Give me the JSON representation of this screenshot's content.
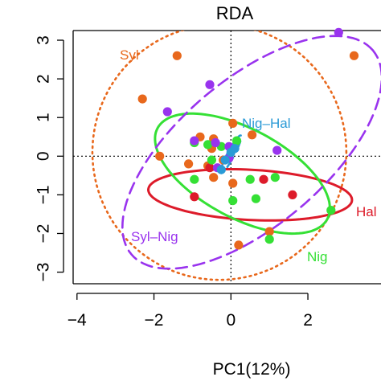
{
  "chart_data": {
    "type": "scatter",
    "title": "RDA",
    "xlabel": "PC1(12%)",
    "ylabel": "",
    "xlim": [
      -4.1,
      3.9
    ],
    "ylim": [
      -3.3,
      3.25
    ],
    "x_ticks": [
      "−4",
      "−2",
      "0",
      "2"
    ],
    "x_tick_values": [
      -4,
      -2,
      0,
      2
    ],
    "y_ticks": [
      "−3",
      "−2",
      "−1",
      "0",
      "1",
      "2",
      "3"
    ],
    "y_tick_values": [
      -3,
      -2,
      -1,
      0,
      1,
      2,
      3
    ],
    "reference_lines": {
      "x": 0,
      "y": 0,
      "style": "dotted"
    },
    "groups": [
      {
        "label": "Syl",
        "color": "#e8681c",
        "ellipse": {
          "center": [
            -0.3,
            0.1
          ],
          "half_width": 3.3,
          "half_height": 3.3,
          "angle_deg": 0,
          "style": "dotted"
        },
        "points": [
          [
            -1.4,
            2.6
          ],
          [
            -2.3,
            1.48
          ],
          [
            -1.85,
            0.0
          ],
          [
            -1.1,
            -0.2
          ],
          [
            -0.8,
            0.5
          ],
          [
            -0.45,
            0.45
          ],
          [
            -0.5,
            0.2
          ],
          [
            -0.6,
            -0.25
          ],
          [
            -0.45,
            -0.55
          ],
          [
            -0.2,
            -0.1
          ],
          [
            0.05,
            -0.7
          ],
          [
            0.05,
            0.85
          ],
          [
            0.55,
            0.55
          ],
          [
            0.2,
            -2.3
          ],
          [
            1.0,
            -1.95
          ],
          [
            3.2,
            2.6
          ]
        ]
      },
      {
        "label": "Hal",
        "color": "#dd1b2a",
        "ellipse": {
          "center": [
            0.5,
            -1.0
          ],
          "half_width": 2.65,
          "half_height": 0.65,
          "angle_deg": -3,
          "style": "solid"
        },
        "points": [
          [
            -0.95,
            -1.05
          ],
          [
            -0.55,
            -0.3
          ],
          [
            0.85,
            -0.6
          ],
          [
            1.6,
            -1.0
          ]
        ]
      },
      {
        "label": "Nig",
        "color": "#35e035",
        "ellipse": {
          "center": [
            0.3,
            -0.45
          ],
          "half_width": 2.5,
          "half_height": 1.15,
          "angle_deg": -28,
          "style": "solid"
        },
        "points": [
          [
            -0.95,
            0.35
          ],
          [
            -0.6,
            0.3
          ],
          [
            -0.25,
            0.25
          ],
          [
            0.15,
            0.4
          ],
          [
            -0.5,
            -0.1
          ],
          [
            0.5,
            -0.6
          ],
          [
            1.15,
            -0.55
          ],
          [
            0.65,
            -1.1
          ],
          [
            0.05,
            -1.15
          ],
          [
            -0.95,
            -0.6
          ],
          [
            2.6,
            -1.4
          ],
          [
            1.0,
            -2.15
          ]
        ]
      },
      {
        "label": "Syl–Nig",
        "color": "#9933ee",
        "ellipse": {
          "center": [
            0.55,
            0.1
          ],
          "half_width": 4.1,
          "half_height": 1.9,
          "angle_deg": 40,
          "style": "dashed"
        },
        "points": [
          [
            -0.55,
            1.85
          ],
          [
            -1.65,
            1.15
          ],
          [
            -0.95,
            0.4
          ],
          [
            -0.4,
            0.35
          ],
          [
            -0.05,
            0.25
          ],
          [
            1.2,
            0.15
          ],
          [
            -0.35,
            -0.3
          ],
          [
            -0.05,
            -0.05
          ],
          [
            2.8,
            3.2
          ]
        ]
      },
      {
        "label": "Nig–Hal",
        "color": "#2a9ad6",
        "ellipse": {
          "center": [
            0.0,
            0.05
          ],
          "half_width": 0.55,
          "half_height": 0.09,
          "angle_deg": 62,
          "style": "dashed"
        },
        "points": [
          [
            -0.15,
            -0.1
          ],
          [
            0.0,
            0.1
          ],
          [
            -0.25,
            -0.35
          ],
          [
            0.1,
            0.2
          ]
        ]
      }
    ]
  }
}
